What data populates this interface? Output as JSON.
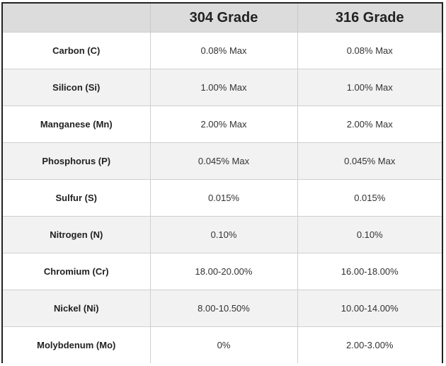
{
  "table": {
    "headers": [
      "",
      "304 Grade",
      "316 Grade"
    ],
    "rows": [
      {
        "element": "Carbon (C)",
        "g304": "0.08% Max",
        "g316": "0.08% Max"
      },
      {
        "element": "Silicon (Si)",
        "g304": "1.00% Max",
        "g316": "1.00% Max"
      },
      {
        "element": "Manganese (Mn)",
        "g304": "2.00% Max",
        "g316": "2.00% Max"
      },
      {
        "element": "Phosphorus (P)",
        "g304": "0.045% Max",
        "g316": "0.045% Max"
      },
      {
        "element": "Sulfur (S)",
        "g304": "0.015%",
        "g316": "0.015%"
      },
      {
        "element": "Nitrogen (N)",
        "g304": "0.10%",
        "g316": "0.10%"
      },
      {
        "element": "Chromium (Cr)",
        "g304": "18.00-20.00%",
        "g316": "16.00-18.00%"
      },
      {
        "element": "Nickel (Ni)",
        "g304": "8.00-10.50%",
        "g316": "10.00-14.00%"
      },
      {
        "element": "Molybdenum (Mo)",
        "g304": "0%",
        "g316": "2.00-3.00%"
      }
    ]
  }
}
